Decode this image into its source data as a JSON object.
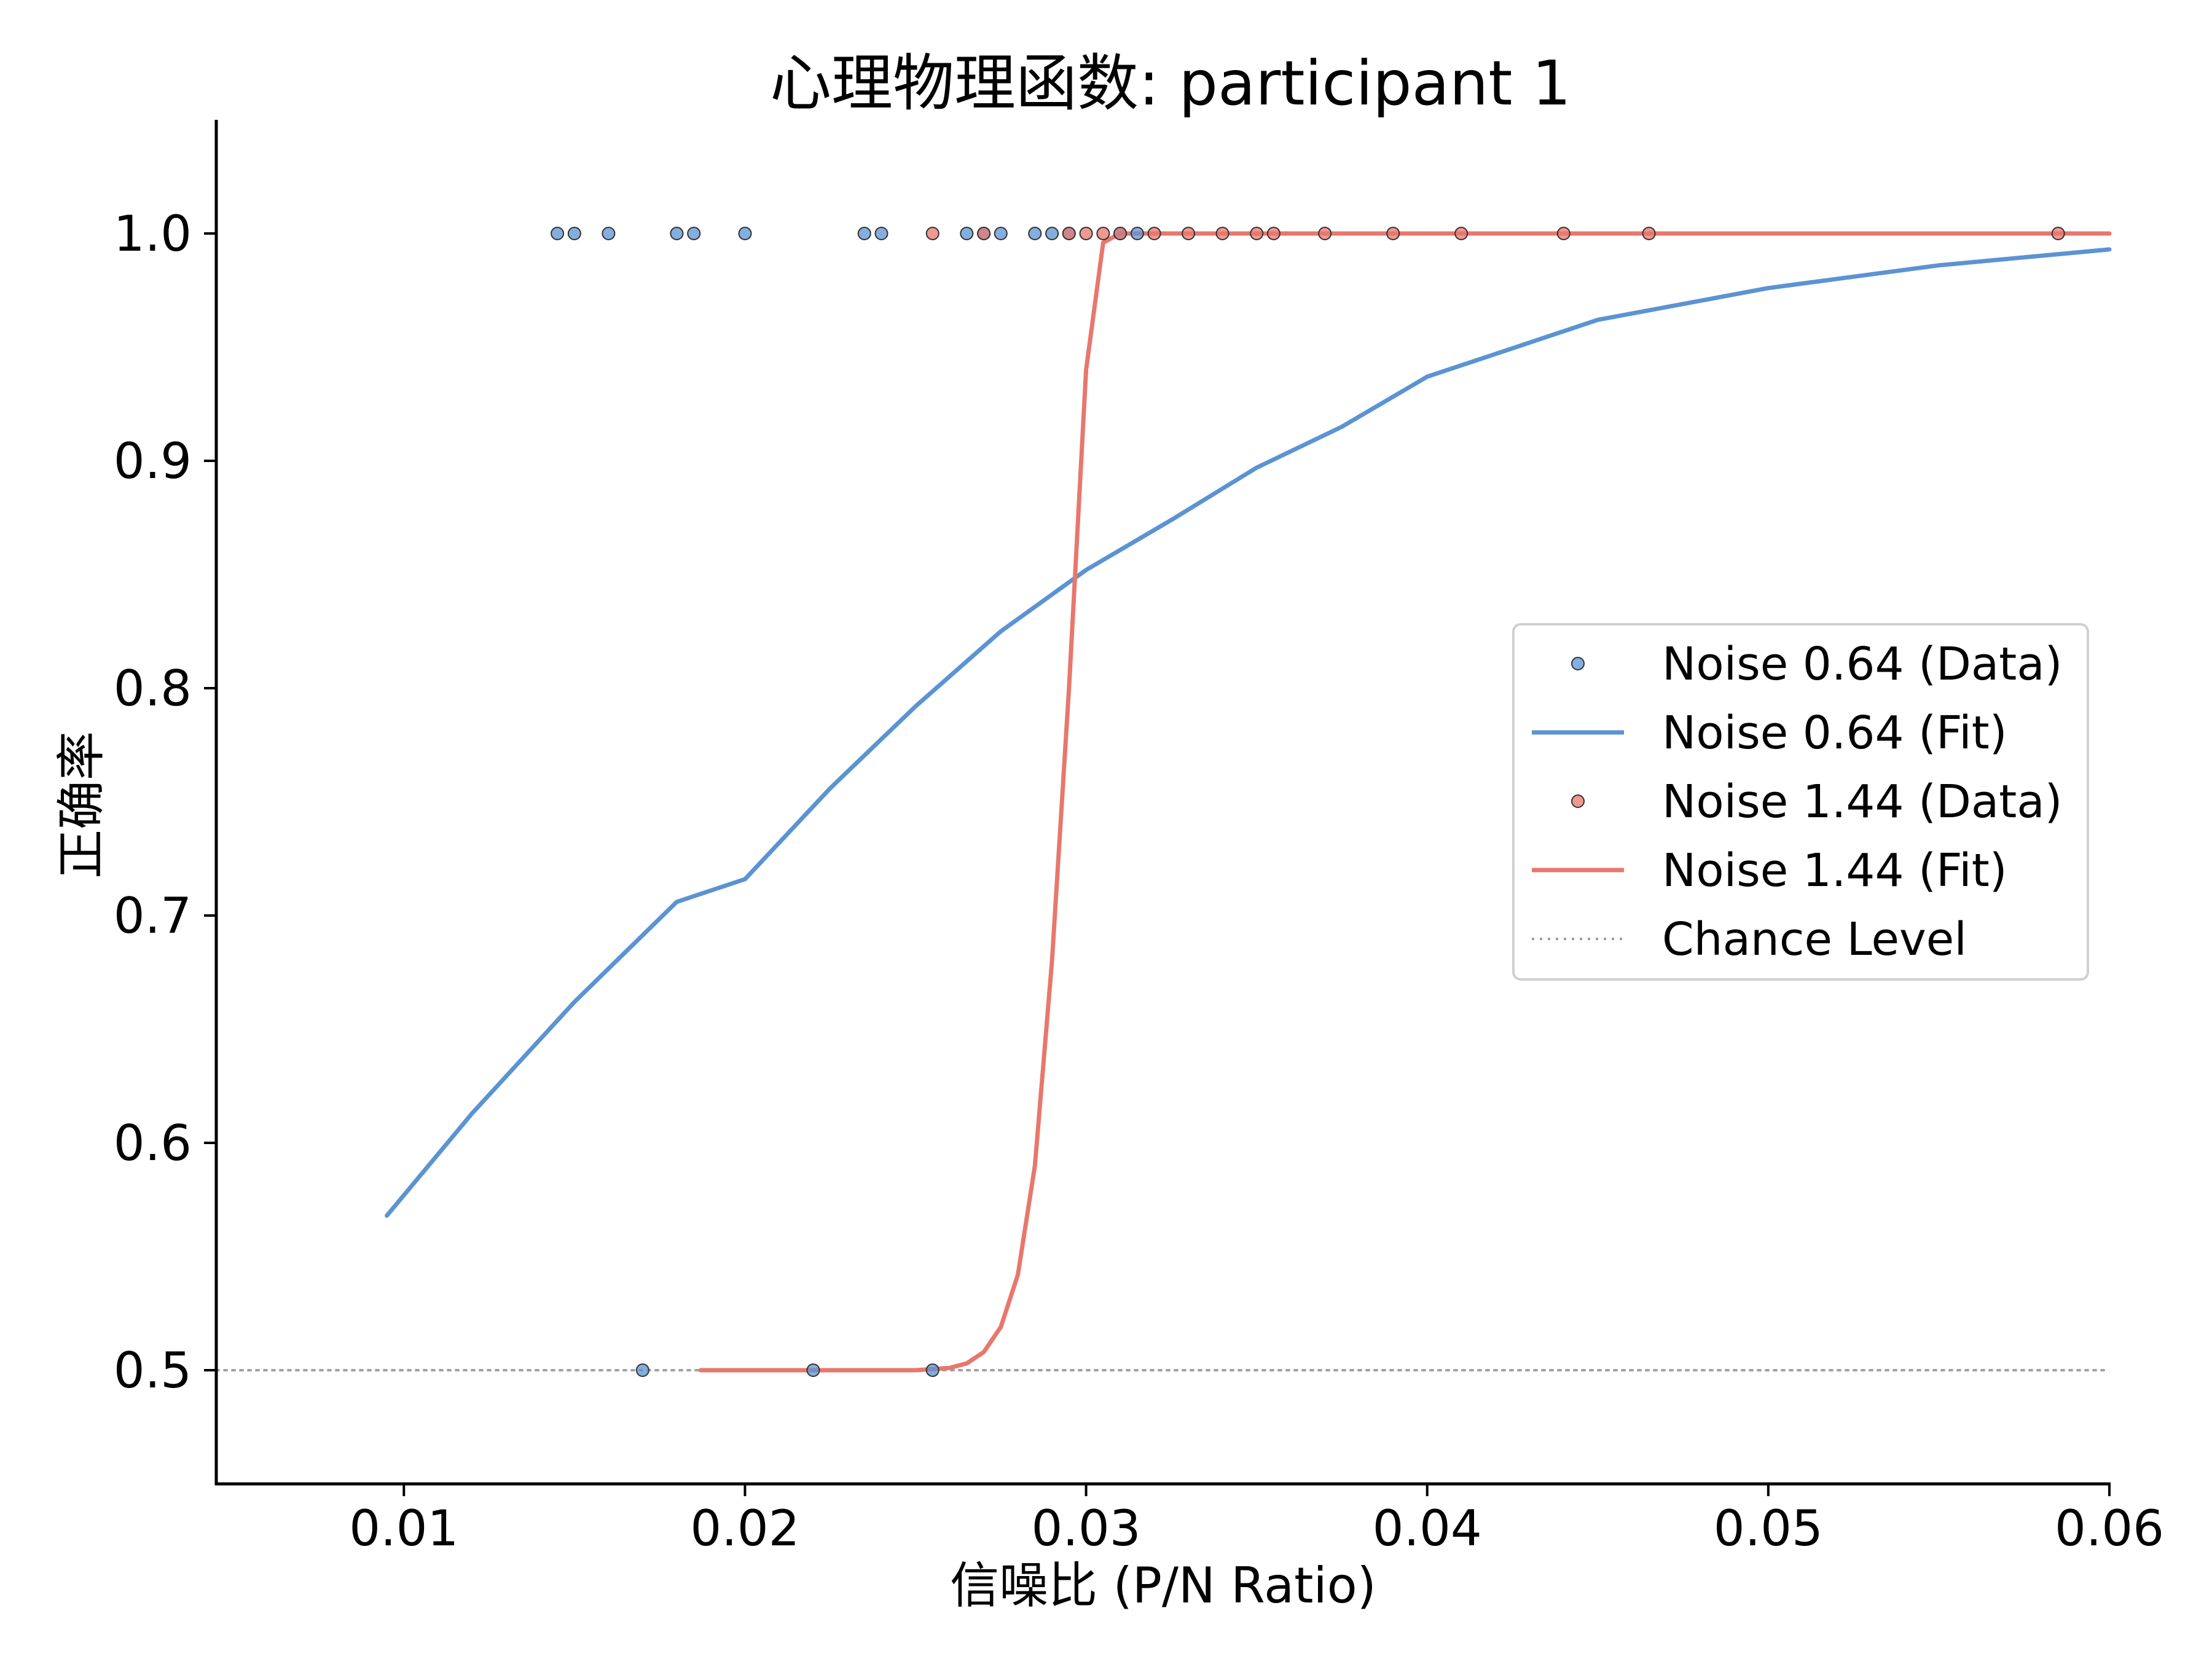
{
  "chart_data": {
    "type": "scatter",
    "title": "心理物理函数: participant 1",
    "xlabel": "信噪比 (P/N Ratio)",
    "ylabel": "正确率",
    "xlim": [
      0.0045,
      0.06
    ],
    "ylim": [
      0.45,
      1.05
    ],
    "x_ticks": [
      0.01,
      0.02,
      0.03,
      0.04,
      0.05,
      0.06
    ],
    "x_tick_labels": [
      "0.01",
      "0.02",
      "0.03",
      "0.04",
      "0.05",
      "0.06"
    ],
    "y_ticks": [
      0.5,
      0.6,
      0.7,
      0.8,
      0.9,
      1.0
    ],
    "y_tick_labels": [
      "0.5",
      "0.6",
      "0.7",
      "0.8",
      "0.9",
      "1.0"
    ],
    "grid": false,
    "legend_position": "center-right",
    "chance_level": 0.5,
    "series": [
      {
        "name": "Noise 0.64 (Data)",
        "kind": "scatter",
        "color": "#5b93d3",
        "points": [
          {
            "x": 0.0145,
            "y": 1.0
          },
          {
            "x": 0.015,
            "y": 1.0
          },
          {
            "x": 0.016,
            "y": 1.0
          },
          {
            "x": 0.018,
            "y": 1.0
          },
          {
            "x": 0.0185,
            "y": 1.0
          },
          {
            "x": 0.02,
            "y": 1.0
          },
          {
            "x": 0.0235,
            "y": 1.0
          },
          {
            "x": 0.024,
            "y": 1.0
          },
          {
            "x": 0.0265,
            "y": 1.0
          },
          {
            "x": 0.027,
            "y": 1.0
          },
          {
            "x": 0.0275,
            "y": 1.0
          },
          {
            "x": 0.0285,
            "y": 1.0
          },
          {
            "x": 0.029,
            "y": 1.0
          },
          {
            "x": 0.0295,
            "y": 1.0
          },
          {
            "x": 0.031,
            "y": 1.0
          },
          {
            "x": 0.0315,
            "y": 1.0
          },
          {
            "x": 0.017,
            "y": 0.5
          },
          {
            "x": 0.022,
            "y": 0.5
          },
          {
            "x": 0.0255,
            "y": 0.5
          }
        ]
      },
      {
        "name": "Noise 0.64 (Fit)",
        "kind": "line",
        "color": "#5b93d3",
        "points": [
          {
            "x": 0.0095,
            "y": 0.568
          },
          {
            "x": 0.012,
            "y": 0.613
          },
          {
            "x": 0.015,
            "y": 0.662
          },
          {
            "x": 0.018,
            "y": 0.706
          },
          {
            "x": 0.02,
            "y": 0.716
          },
          {
            "x": 0.0225,
            "y": 0.756
          },
          {
            "x": 0.025,
            "y": 0.792
          },
          {
            "x": 0.0275,
            "y": 0.825
          },
          {
            "x": 0.03,
            "y": 0.852
          },
          {
            "x": 0.0325,
            "y": 0.874
          },
          {
            "x": 0.035,
            "y": 0.897
          },
          {
            "x": 0.0375,
            "y": 0.915
          },
          {
            "x": 0.04,
            "y": 0.937
          },
          {
            "x": 0.045,
            "y": 0.962
          },
          {
            "x": 0.05,
            "y": 0.976
          },
          {
            "x": 0.055,
            "y": 0.986
          },
          {
            "x": 0.06,
            "y": 0.993
          }
        ]
      },
      {
        "name": "Noise 1.44 (Data)",
        "kind": "scatter",
        "color": "#e8776c",
        "points": [
          {
            "x": 0.0255,
            "y": 1.0
          },
          {
            "x": 0.027,
            "y": 1.0
          },
          {
            "x": 0.0295,
            "y": 1.0
          },
          {
            "x": 0.03,
            "y": 1.0
          },
          {
            "x": 0.0305,
            "y": 1.0
          },
          {
            "x": 0.031,
            "y": 1.0
          },
          {
            "x": 0.032,
            "y": 1.0
          },
          {
            "x": 0.033,
            "y": 1.0
          },
          {
            "x": 0.034,
            "y": 1.0
          },
          {
            "x": 0.035,
            "y": 1.0
          },
          {
            "x": 0.0355,
            "y": 1.0
          },
          {
            "x": 0.037,
            "y": 1.0
          },
          {
            "x": 0.039,
            "y": 1.0
          },
          {
            "x": 0.041,
            "y": 1.0
          },
          {
            "x": 0.044,
            "y": 1.0
          },
          {
            "x": 0.0465,
            "y": 1.0
          },
          {
            "x": 0.0585,
            "y": 1.0
          }
        ]
      },
      {
        "name": "Noise 1.44 (Fit)",
        "kind": "line",
        "color": "#e8776c",
        "points": [
          {
            "x": 0.0187,
            "y": 0.5
          },
          {
            "x": 0.025,
            "y": 0.5
          },
          {
            "x": 0.026,
            "y": 0.501
          },
          {
            "x": 0.0265,
            "y": 0.503
          },
          {
            "x": 0.027,
            "y": 0.508
          },
          {
            "x": 0.0275,
            "y": 0.519
          },
          {
            "x": 0.028,
            "y": 0.542
          },
          {
            "x": 0.0285,
            "y": 0.59
          },
          {
            "x": 0.029,
            "y": 0.68
          },
          {
            "x": 0.0295,
            "y": 0.8
          },
          {
            "x": 0.03,
            "y": 0.94
          },
          {
            "x": 0.0305,
            "y": 0.996
          },
          {
            "x": 0.031,
            "y": 1.0
          },
          {
            "x": 0.04,
            "y": 1.0
          },
          {
            "x": 0.05,
            "y": 1.0
          },
          {
            "x": 0.06,
            "y": 1.0
          }
        ]
      },
      {
        "name": "Chance Level",
        "kind": "dotted-line",
        "color": "#a0a0a0",
        "points": [
          {
            "x": 0.0045,
            "y": 0.5
          },
          {
            "x": 0.06,
            "y": 0.5
          }
        ]
      }
    ]
  }
}
